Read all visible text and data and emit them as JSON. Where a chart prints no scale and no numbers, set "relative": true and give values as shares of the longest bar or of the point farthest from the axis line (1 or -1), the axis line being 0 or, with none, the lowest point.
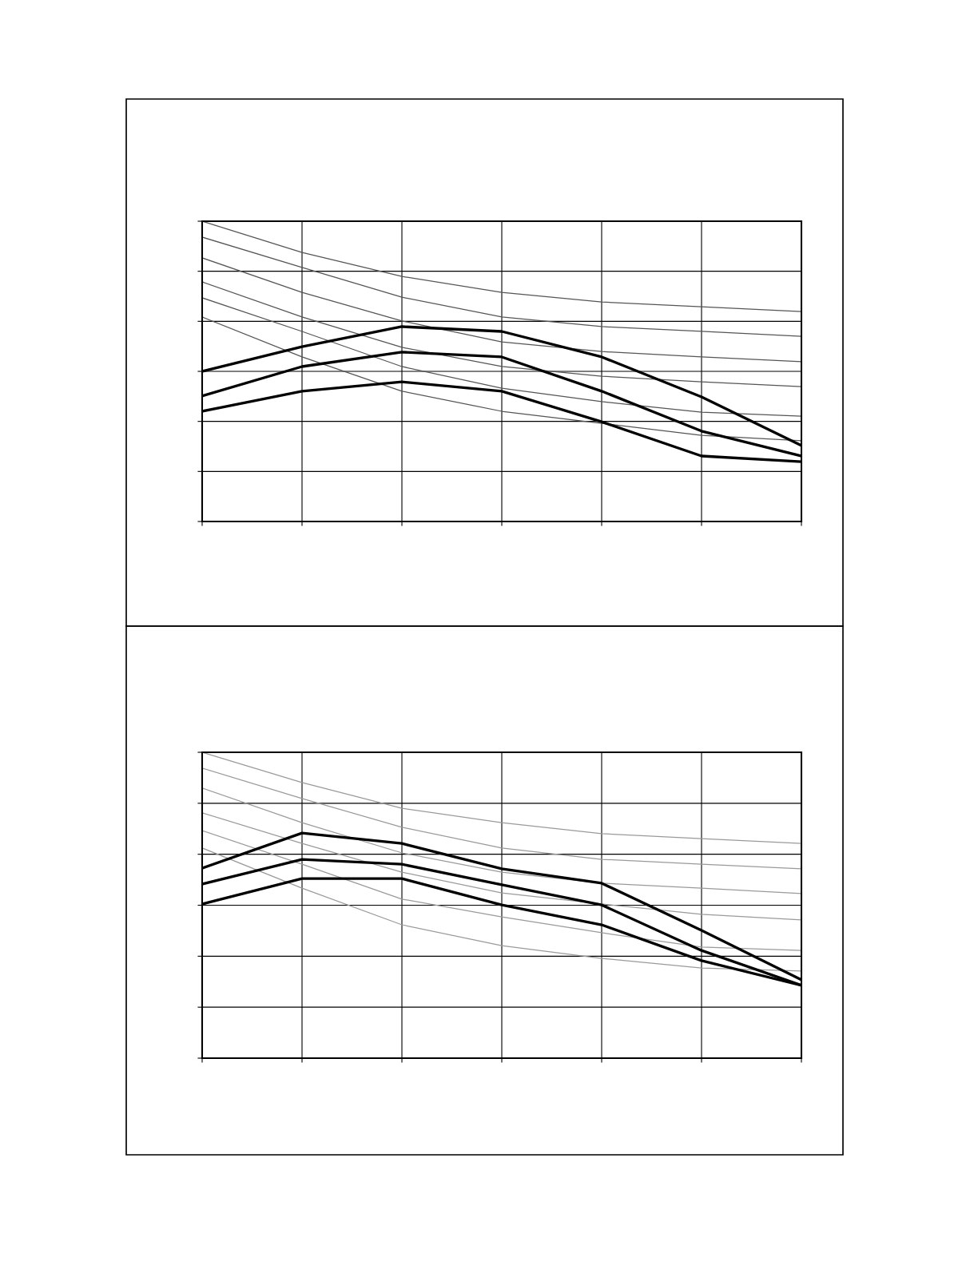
{
  "chart_data": [
    {
      "type": "line",
      "relative": true,
      "grid": true,
      "categories": [
        null,
        null,
        null,
        null,
        null,
        null,
        null
      ],
      "series": [
        {
          "color": "#555555",
          "values": [
            1.0,
            0.896,
            0.816,
            0.763,
            0.731,
            0.715,
            0.699
          ]
        },
        {
          "color": "#555555",
          "values": [
            0.947,
            0.846,
            0.747,
            0.681,
            0.649,
            0.633,
            0.617
          ]
        },
        {
          "color": "#555555",
          "values": [
            0.878,
            0.763,
            0.668,
            0.598,
            0.566,
            0.548,
            0.532
          ]
        },
        {
          "color": "#555555",
          "values": [
            0.798,
            0.681,
            0.58,
            0.516,
            0.484,
            0.465,
            0.449
          ]
        },
        {
          "color": "#555555",
          "values": [
            0.745,
            0.633,
            0.516,
            0.444,
            0.399,
            0.364,
            0.351
          ]
        },
        {
          "color": "#555555",
          "values": [
            0.681,
            0.548,
            0.434,
            0.367,
            0.327,
            0.287,
            0.269
          ]
        },
        {
          "color": "#000000",
          "values": [
            0.5,
            0.582,
            0.649,
            0.633,
            0.548,
            0.415,
            0.253
          ]
        },
        {
          "color": "#000000",
          "values": [
            0.418,
            0.516,
            0.564,
            0.548,
            0.434,
            0.301,
            0.218
          ]
        },
        {
          "color": "#000000",
          "values": [
            0.367,
            0.434,
            0.465,
            0.434,
            0.332,
            0.218,
            0.199
          ]
        }
      ]
    },
    {
      "type": "line",
      "relative": true,
      "grid": true,
      "categories": [
        null,
        null,
        null,
        null,
        null,
        null,
        null
      ],
      "series": [
        {
          "color": "#9a9a9a",
          "values": [
            1.0,
            0.901,
            0.817,
            0.77,
            0.734,
            0.718,
            0.702
          ]
        },
        {
          "color": "#9a9a9a",
          "values": [
            0.948,
            0.849,
            0.755,
            0.687,
            0.65,
            0.634,
            0.619
          ]
        },
        {
          "color": "#9a9a9a",
          "values": [
            0.883,
            0.77,
            0.671,
            0.608,
            0.572,
            0.556,
            0.538
          ]
        },
        {
          "color": "#9a9a9a",
          "values": [
            0.802,
            0.702,
            0.608,
            0.54,
            0.504,
            0.47,
            0.452
          ]
        },
        {
          "color": "#9a9a9a",
          "values": [
            0.744,
            0.634,
            0.52,
            0.462,
            0.41,
            0.363,
            0.352
          ]
        },
        {
          "color": "#9a9a9a",
          "values": [
            0.687,
            0.556,
            0.436,
            0.368,
            0.326,
            0.295,
            0.285
          ]
        },
        {
          "color": "#000000",
          "values": [
            0.621,
            0.736,
            0.702,
            0.619,
            0.572,
            0.418,
            0.256
          ]
        },
        {
          "color": "#000000",
          "values": [
            0.569,
            0.65,
            0.634,
            0.567,
            0.501,
            0.352,
            0.238
          ]
        },
        {
          "color": "#000000",
          "values": [
            0.504,
            0.587,
            0.587,
            0.501,
            0.436,
            0.319,
            0.238
          ]
        }
      ]
    }
  ]
}
